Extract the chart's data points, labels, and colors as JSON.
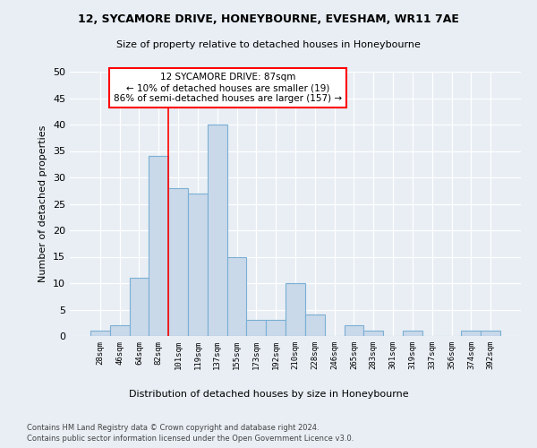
{
  "title1": "12, SYCAMORE DRIVE, HONEYBOURNE, EVESHAM, WR11 7AE",
  "title2": "Size of property relative to detached houses in Honeybourne",
  "xlabel": "Distribution of detached houses by size in Honeybourne",
  "ylabel": "Number of detached properties",
  "categories": [
    "28sqm",
    "46sqm",
    "64sqm",
    "82sqm",
    "101sqm",
    "119sqm",
    "137sqm",
    "155sqm",
    "173sqm",
    "192sqm",
    "210sqm",
    "228sqm",
    "246sqm",
    "265sqm",
    "283sqm",
    "301sqm",
    "319sqm",
    "337sqm",
    "356sqm",
    "374sqm",
    "392sqm"
  ],
  "values": [
    1,
    2,
    11,
    34,
    28,
    27,
    40,
    15,
    3,
    3,
    10,
    4,
    0,
    2,
    1,
    0,
    1,
    0,
    0,
    1,
    1
  ],
  "bar_color": "#c9d9ea",
  "bar_edge_color": "#7bafd4",
  "ylim": [
    0,
    50
  ],
  "yticks": [
    0,
    5,
    10,
    15,
    20,
    25,
    30,
    35,
    40,
    45,
    50
  ],
  "property_label": "12 SYCAMORE DRIVE: 87sqm",
  "annotation_line1": "← 10% of detached houses are smaller (19)",
  "annotation_line2": "86% of semi-detached houses are larger (157) →",
  "vline_x_index": 3,
  "footer1": "Contains HM Land Registry data © Crown copyright and database right 2024.",
  "footer2": "Contains public sector information licensed under the Open Government Licence v3.0.",
  "bg_color": "#e8eef4"
}
